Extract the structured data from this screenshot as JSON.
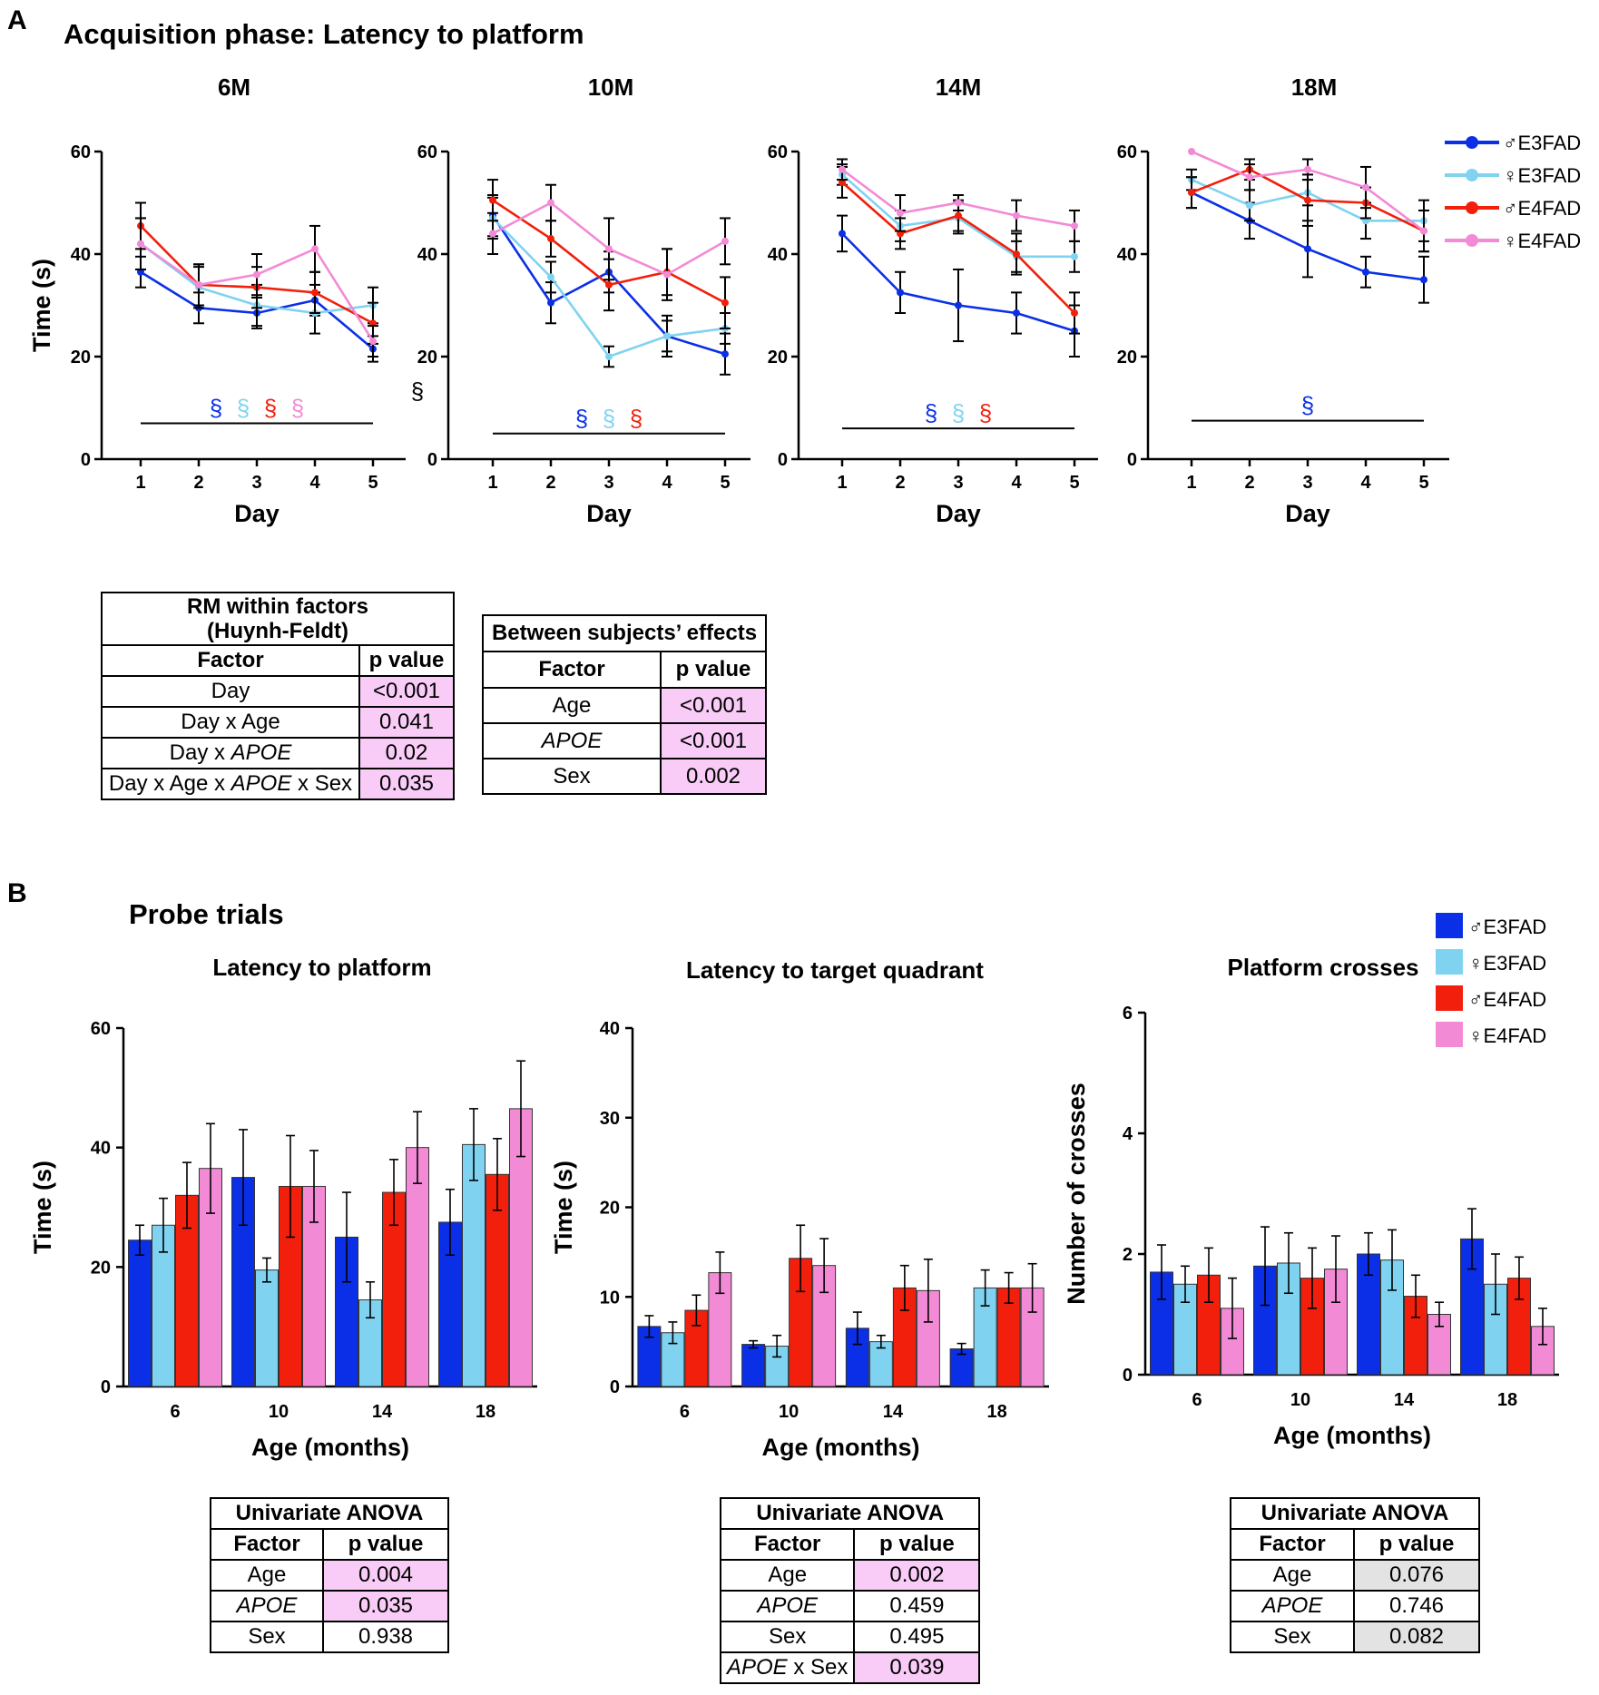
{
  "panel_labels": [
    "A",
    "B"
  ],
  "section_titles": {
    "acquisition": "Acquisition phase: Latency to platform",
    "probe": "Probe trials"
  },
  "colors": {
    "m_e3": "#0a2fe6",
    "f_e3": "#7fd3f1",
    "m_e4": "#f21f0c",
    "f_e4": "#f38ad6",
    "highlight_pink": "#f9ccf8",
    "highlight_grey": "#e3e3e3"
  },
  "legend": [
    "♂E3FAD",
    "♀E3FAD",
    "♂E4FAD",
    "♀E4FAD"
  ],
  "chart_data": [
    {
      "type": "line",
      "title": "6M",
      "xlabel": "Day",
      "ylabel": "Time (s)",
      "x": [
        1,
        2,
        3,
        4,
        5
      ],
      "ylim": [
        0,
        60
      ],
      "yticks": [
        0,
        20,
        40,
        60
      ],
      "series": [
        {
          "name": "♂E3FAD",
          "values": [
            36.5,
            29.5,
            28.5,
            31,
            21.5
          ],
          "err": [
            3,
            3,
            3,
            3,
            2.5
          ]
        },
        {
          "name": "♀E3FAD",
          "values": [
            42,
            33.5,
            30,
            28.5,
            30
          ],
          "err": [
            5,
            4,
            4,
            4,
            3.5
          ]
        },
        {
          "name": "♂E4FAD",
          "values": [
            45.5,
            34,
            33.5,
            32.5,
            26.5
          ],
          "err": [
            4.5,
            4,
            4,
            4,
            4
          ]
        },
        {
          "name": "♀E4FAD",
          "values": [
            42,
            34,
            36,
            41,
            23
          ],
          "err": [
            5,
            4,
            4,
            4.5,
            3
          ]
        }
      ],
      "significance": {
        "symbol": "§",
        "series": [
          "♂E3FAD",
          "♀E3FAD",
          "♂E4FAD",
          "♀E4FAD"
        ],
        "line_y": 7
      },
      "extra_mark": "§"
    },
    {
      "type": "line",
      "title": "10M",
      "xlabel": "Day",
      "ylabel": "",
      "x": [
        1,
        2,
        3,
        4,
        5
      ],
      "ylim": [
        0,
        60
      ],
      "yticks": [
        0,
        20,
        40,
        60
      ],
      "series": [
        {
          "name": "♂E3FAD",
          "values": [
            47.5,
            30.5,
            36.5,
            24,
            20.5
          ],
          "err": [
            4,
            4,
            4,
            4,
            4
          ]
        },
        {
          "name": "♀E3FAD",
          "values": [
            47,
            35.5,
            20,
            24,
            25.5
          ],
          "err": [
            4,
            3,
            2,
            3,
            3
          ]
        },
        {
          "name": "♂E4FAD",
          "values": [
            50.5,
            43,
            34,
            36.5,
            30.5
          ],
          "err": [
            4,
            3.5,
            5,
            4.5,
            5
          ]
        },
        {
          "name": "♀E4FAD",
          "values": [
            44,
            50,
            41,
            36,
            42.5
          ],
          "err": [
            4,
            3.5,
            6,
            5,
            4.5
          ]
        }
      ],
      "significance": {
        "symbol": "§",
        "series": [
          "♂E3FAD",
          "♀E3FAD",
          "♂E4FAD"
        ],
        "line_y": 5
      }
    },
    {
      "type": "line",
      "title": "14M",
      "xlabel": "Day",
      "ylabel": "",
      "x": [
        1,
        2,
        3,
        4,
        5
      ],
      "ylim": [
        0,
        60
      ],
      "yticks": [
        0,
        20,
        40,
        60
      ],
      "series": [
        {
          "name": "♂E3FAD",
          "values": [
            44,
            32.5,
            30,
            28.5,
            25
          ],
          "err": [
            3.5,
            4,
            7,
            4,
            5
          ]
        },
        {
          "name": "♀E3FAD",
          "values": [
            55.5,
            45.5,
            47,
            39.5,
            39.5
          ],
          "err": [
            2,
            3,
            3,
            3,
            3
          ]
        },
        {
          "name": "♂E4FAD",
          "values": [
            54,
            44,
            47.5,
            40,
            28.5
          ],
          "err": [
            3,
            3,
            3,
            4,
            4
          ]
        },
        {
          "name": "♀E4FAD",
          "values": [
            56.5,
            48,
            50,
            47.5,
            45.5
          ],
          "err": [
            2,
            3.5,
            1.5,
            3,
            3
          ]
        }
      ],
      "significance": {
        "symbol": "§",
        "series": [
          "♂E3FAD",
          "♀E3FAD",
          "♂E4FAD"
        ],
        "line_y": 6
      }
    },
    {
      "type": "line",
      "title": "18M",
      "xlabel": "Day",
      "ylabel": "",
      "x": [
        1,
        2,
        3,
        4,
        5
      ],
      "ylim": [
        0,
        60
      ],
      "yticks": [
        0,
        20,
        40,
        60
      ],
      "series": [
        {
          "name": "♂E3FAD",
          "values": [
            52,
            46.5,
            41,
            36.5,
            35
          ],
          "err": [
            3,
            3.5,
            5.5,
            3,
            4.5
          ]
        },
        {
          "name": "♀E3FAD",
          "values": [
            54.5,
            49.5,
            52,
            46.5,
            46.5
          ],
          "err": [
            2,
            3,
            2.5,
            3.5,
            4
          ]
        },
        {
          "name": "♂E4FAD",
          "values": [
            52,
            56.5,
            50.5,
            50,
            44.5
          ],
          "err": [
            3,
            2,
            5,
            3,
            4
          ]
        },
        {
          "name": "♀E4FAD",
          "values": [
            60,
            55,
            56.5,
            53,
            44.5
          ],
          "err": [
            0,
            2.5,
            2,
            4,
            4
          ]
        }
      ],
      "significance": {
        "symbol": "§",
        "series": [
          "♂E3FAD"
        ],
        "line_y": 7.5
      }
    },
    {
      "type": "bar",
      "title": "Latency to platform",
      "xlabel": "Age (months)",
      "ylabel": "Time (s)",
      "categories": [
        "6",
        "10",
        "14",
        "18"
      ],
      "ylim": [
        0,
        60
      ],
      "yticks": [
        0,
        20,
        40,
        60
      ],
      "series": [
        {
          "name": "♂E3FAD",
          "values": [
            24.5,
            35,
            25,
            27.5
          ],
          "err": [
            2.5,
            8,
            7.5,
            5.5
          ]
        },
        {
          "name": "♀E3FAD",
          "values": [
            27,
            19.5,
            14.5,
            40.5
          ],
          "err": [
            4.5,
            2,
            3,
            6
          ]
        },
        {
          "name": "♂E4FAD",
          "values": [
            32,
            33.5,
            32.5,
            35.5
          ],
          "err": [
            5.5,
            8.5,
            5.5,
            6
          ]
        },
        {
          "name": "♀E4FAD",
          "values": [
            36.5,
            33.5,
            40,
            46.5
          ],
          "err": [
            7.5,
            6,
            6,
            8
          ]
        }
      ]
    },
    {
      "type": "bar",
      "title": "Latency to target quadrant",
      "xlabel": "Age (months)",
      "ylabel": "Time (s)",
      "categories": [
        "6",
        "10",
        "14",
        "18"
      ],
      "ylim": [
        0,
        40
      ],
      "yticks": [
        0,
        10,
        20,
        30,
        40
      ],
      "series": [
        {
          "name": "♂E3FAD",
          "values": [
            6.7,
            4.7,
            6.5,
            4.2
          ],
          "err": [
            1.2,
            0.4,
            1.8,
            0.6
          ]
        },
        {
          "name": "♀E3FAD",
          "values": [
            6,
            4.5,
            5,
            11
          ],
          "err": [
            1.2,
            1.2,
            0.7,
            2
          ]
        },
        {
          "name": "♂E4FAD",
          "values": [
            8.5,
            14.3,
            11,
            11
          ],
          "err": [
            1.7,
            3.7,
            2.5,
            1.7
          ]
        },
        {
          "name": "♀E4FAD",
          "values": [
            12.7,
            13.5,
            10.7,
            11
          ],
          "err": [
            2.3,
            3,
            3.5,
            2.7
          ]
        }
      ]
    },
    {
      "type": "bar",
      "title": "Platform crosses",
      "xlabel": "Age (months)",
      "ylabel": "Number of crosses",
      "categories": [
        "6",
        "10",
        "14",
        "18"
      ],
      "ylim": [
        0,
        6
      ],
      "yticks": [
        0,
        2,
        4,
        6
      ],
      "series": [
        {
          "name": "♂E3FAD",
          "values": [
            1.7,
            1.8,
            2,
            2.25
          ],
          "err": [
            0.45,
            0.65,
            0.35,
            0.5
          ]
        },
        {
          "name": "♀E3FAD",
          "values": [
            1.5,
            1.85,
            1.9,
            1.5
          ],
          "err": [
            0.3,
            0.5,
            0.5,
            0.5
          ]
        },
        {
          "name": "♂E4FAD",
          "values": [
            1.65,
            1.6,
            1.3,
            1.6
          ],
          "err": [
            0.45,
            0.5,
            0.35,
            0.35
          ]
        },
        {
          "name": "♀E4FAD",
          "values": [
            1.1,
            1.75,
            1,
            0.8
          ],
          "err": [
            0.5,
            0.55,
            0.2,
            0.3
          ]
        }
      ]
    }
  ],
  "tables": {
    "rm": {
      "title": "RM within factors\n(Huynh-Feldt)",
      "header": [
        "Factor",
        "p value"
      ],
      "rows": [
        {
          "factor_pre": "Day",
          "factor_it": "",
          "factor_post": "",
          "p": "<0.001",
          "hl": "pk"
        },
        {
          "factor_pre": "Day x Age",
          "factor_it": "",
          "factor_post": "",
          "p": "0.041",
          "hl": "pk"
        },
        {
          "factor_pre": "Day x ",
          "factor_it": "APOE",
          "factor_post": "",
          "p": "0.02",
          "hl": "pk"
        },
        {
          "factor_pre": "Day x Age x ",
          "factor_it": "APOE",
          "factor_post": " x Sex",
          "p": "0.035",
          "hl": "pk"
        }
      ]
    },
    "between": {
      "title": "Between subjects’ effects",
      "header": [
        "Factor",
        "p value"
      ],
      "rows": [
        {
          "factor_pre": "Age",
          "factor_it": "",
          "factor_post": "",
          "p": "<0.001",
          "hl": "pk"
        },
        {
          "factor_pre": "",
          "factor_it": "APOE",
          "factor_post": "",
          "p": "<0.001",
          "hl": "pk"
        },
        {
          "factor_pre": "Sex",
          "factor_it": "",
          "factor_post": "",
          "p": "0.002",
          "hl": "pk"
        }
      ]
    },
    "anova1": {
      "title": "Univariate ANOVA",
      "header": [
        "Factor",
        "p value"
      ],
      "rows": [
        {
          "factor_pre": "Age",
          "factor_it": "",
          "factor_post": "",
          "p": "0.004",
          "hl": "pk"
        },
        {
          "factor_pre": "",
          "factor_it": "APOE",
          "factor_post": "",
          "p": "0.035",
          "hl": "pk"
        },
        {
          "factor_pre": "Sex",
          "factor_it": "",
          "factor_post": "",
          "p": "0.938",
          "hl": ""
        }
      ]
    },
    "anova2": {
      "title": "Univariate ANOVA",
      "header": [
        "Factor",
        "p value"
      ],
      "rows": [
        {
          "factor_pre": "Age",
          "factor_it": "",
          "factor_post": "",
          "p": "0.002",
          "hl": "pk"
        },
        {
          "factor_pre": "",
          "factor_it": "APOE",
          "factor_post": "",
          "p": "0.459",
          "hl": ""
        },
        {
          "factor_pre": "Sex",
          "factor_it": "",
          "factor_post": "",
          "p": "0.495",
          "hl": ""
        },
        {
          "factor_pre": "",
          "factor_it": "APOE",
          "factor_post": " x Sex",
          "p": "0.039",
          "hl": "pk"
        }
      ]
    },
    "anova3": {
      "title": "Univariate ANOVA",
      "header": [
        "Factor",
        "p value"
      ],
      "rows": [
        {
          "factor_pre": "Age",
          "factor_it": "",
          "factor_post": "",
          "p": "0.076",
          "hl": "gr"
        },
        {
          "factor_pre": "",
          "factor_it": "APOE",
          "factor_post": "",
          "p": "0.746",
          "hl": ""
        },
        {
          "factor_pre": "Sex",
          "factor_it": "",
          "factor_post": "",
          "p": "0.082",
          "hl": "gr"
        }
      ]
    }
  }
}
